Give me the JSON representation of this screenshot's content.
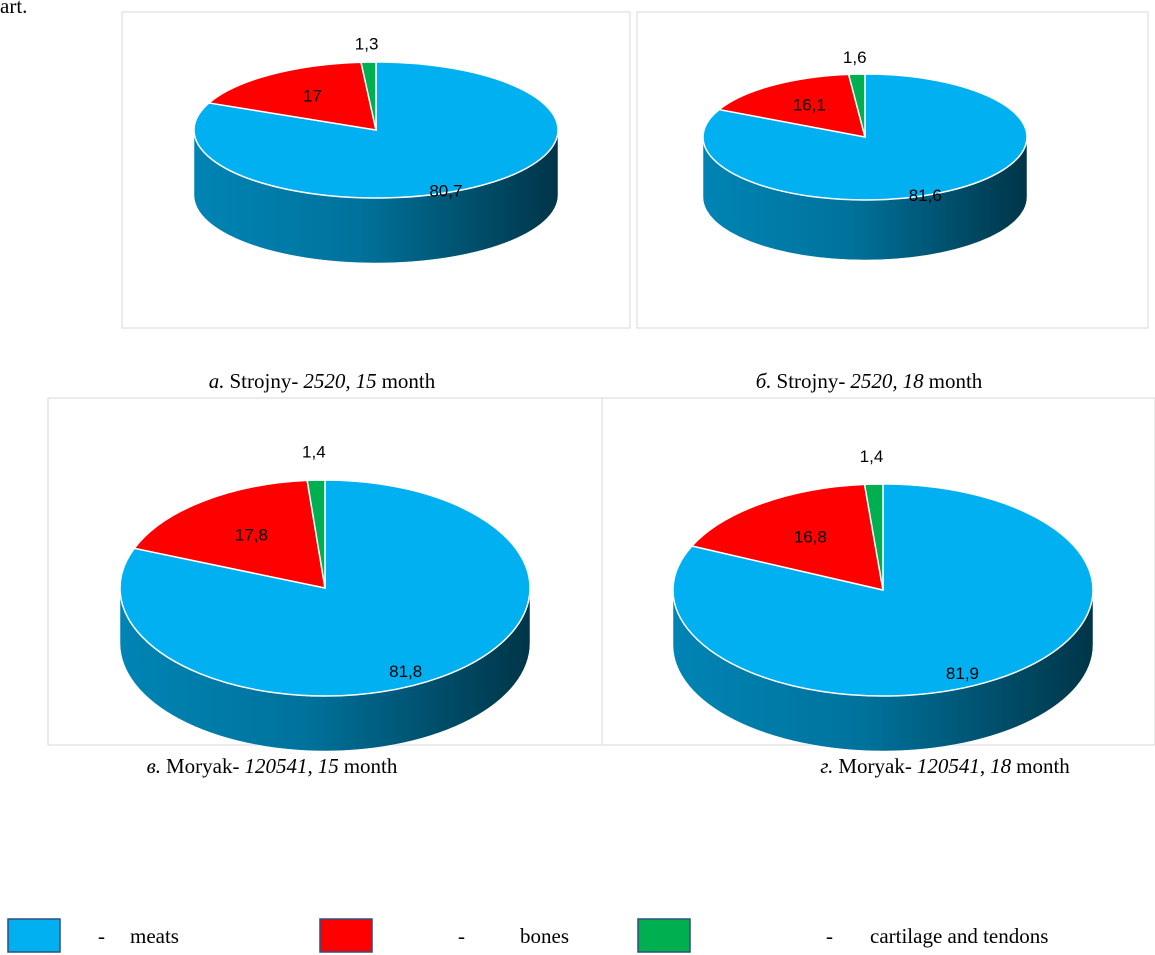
{
  "header_fragment": "art.",
  "legend_separator": "-",
  "chart_data": [
    {
      "type": "pie",
      "categories": [
        "meats",
        "bones",
        "cartilage and tendons"
      ],
      "values": [
        80.7,
        17,
        1.3
      ],
      "value_labels": [
        "80,7",
        "17",
        "1,3"
      ],
      "colors": [
        "#00b0f0",
        "#ff0000",
        "#00b050"
      ],
      "caption": [
        {
          "text": "а.",
          "italic": true
        },
        {
          "text": "Strojny-",
          "italic": false
        },
        {
          "text": "2520,",
          "italic": true
        },
        {
          "text": "15",
          "italic": true
        },
        {
          "text": "month",
          "italic": false
        }
      ]
    },
    {
      "type": "pie",
      "categories": [
        "meats",
        "bones",
        "cartilage and tendons"
      ],
      "values": [
        81.6,
        16.1,
        1.6
      ],
      "value_labels": [
        "81,6",
        "16,1",
        "1,6"
      ],
      "colors": [
        "#00b0f0",
        "#ff0000",
        "#00b050"
      ],
      "caption": [
        {
          "text": "б.",
          "italic": true
        },
        {
          "text": "Strojny-",
          "italic": false
        },
        {
          "text": "2520,",
          "italic": true
        },
        {
          "text": "18",
          "italic": true
        },
        {
          "text": "month",
          "italic": false
        }
      ]
    },
    {
      "type": "pie",
      "categories": [
        "meats",
        "bones",
        "cartilage and tendons"
      ],
      "values": [
        81.8,
        17.8,
        1.4
      ],
      "value_labels": [
        "81,8",
        "17,8",
        "1,4"
      ],
      "colors": [
        "#00b0f0",
        "#ff0000",
        "#00b050"
      ],
      "caption": [
        {
          "text": "в.",
          "italic": true
        },
        {
          "text": "Moryak-",
          "italic": false
        },
        {
          "text": "120541,",
          "italic": true
        },
        {
          "text": "15",
          "italic": true
        },
        {
          "text": "month",
          "italic": false
        }
      ]
    },
    {
      "type": "pie",
      "categories": [
        "meats",
        "bones",
        "cartilage and tendons"
      ],
      "values": [
        81.9,
        16.8,
        1.4
      ],
      "value_labels": [
        "81,9",
        "16,8",
        "1,4"
      ],
      "colors": [
        "#00b0f0",
        "#ff0000",
        "#00b050"
      ],
      "caption": [
        {
          "text": "г.",
          "italic": true
        },
        {
          "text": "Moryak-",
          "italic": false
        },
        {
          "text": "120541,",
          "italic": true
        },
        {
          "text": "18",
          "italic": true
        },
        {
          "text": "month",
          "italic": false
        }
      ]
    }
  ]
}
